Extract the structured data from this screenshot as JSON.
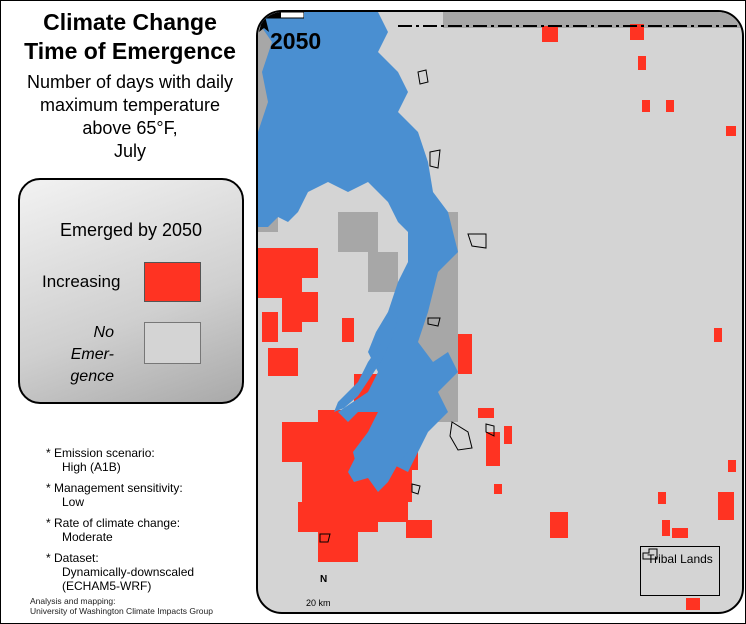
{
  "title_lines": [
    "Climate Change",
    "Time of Emergence"
  ],
  "subtitle_lines": [
    "Number of days with daily",
    "maximum temperature",
    "above 65°F,",
    "July"
  ],
  "legend": {
    "title": "Emerged by 2050",
    "increasing_label": "Increasing",
    "no_emergence_lines": [
      "No Emer-",
      "gence"
    ],
    "colors": {
      "increasing": "#ff3322",
      "no_emergence": "#d4d4d4"
    }
  },
  "notes": [
    {
      "label": "* Emission scenario:",
      "value": "High (A1B)"
    },
    {
      "label": "* Management sensitivity:",
      "value": "Low"
    },
    {
      "label": "* Rate of climate change:",
      "value": "Moderate"
    },
    {
      "label": "* Dataset:",
      "value_lines": [
        "Dynamically-downscaled",
        "(ECHAM5-WRF)"
      ]
    }
  ],
  "credit_lines": [
    "Analysis and mapping:",
    "University of Washington Climate Impacts Group"
  ],
  "map": {
    "year": "2050",
    "tribal_lands_label": "Tribal Lands",
    "scale_label": "20 km",
    "north_label": "N",
    "colors": {
      "water": "#4a8fd1",
      "land": "#d4d4d4",
      "emerged": "#ff3322",
      "no_data": "#a7a7a7"
    }
  }
}
